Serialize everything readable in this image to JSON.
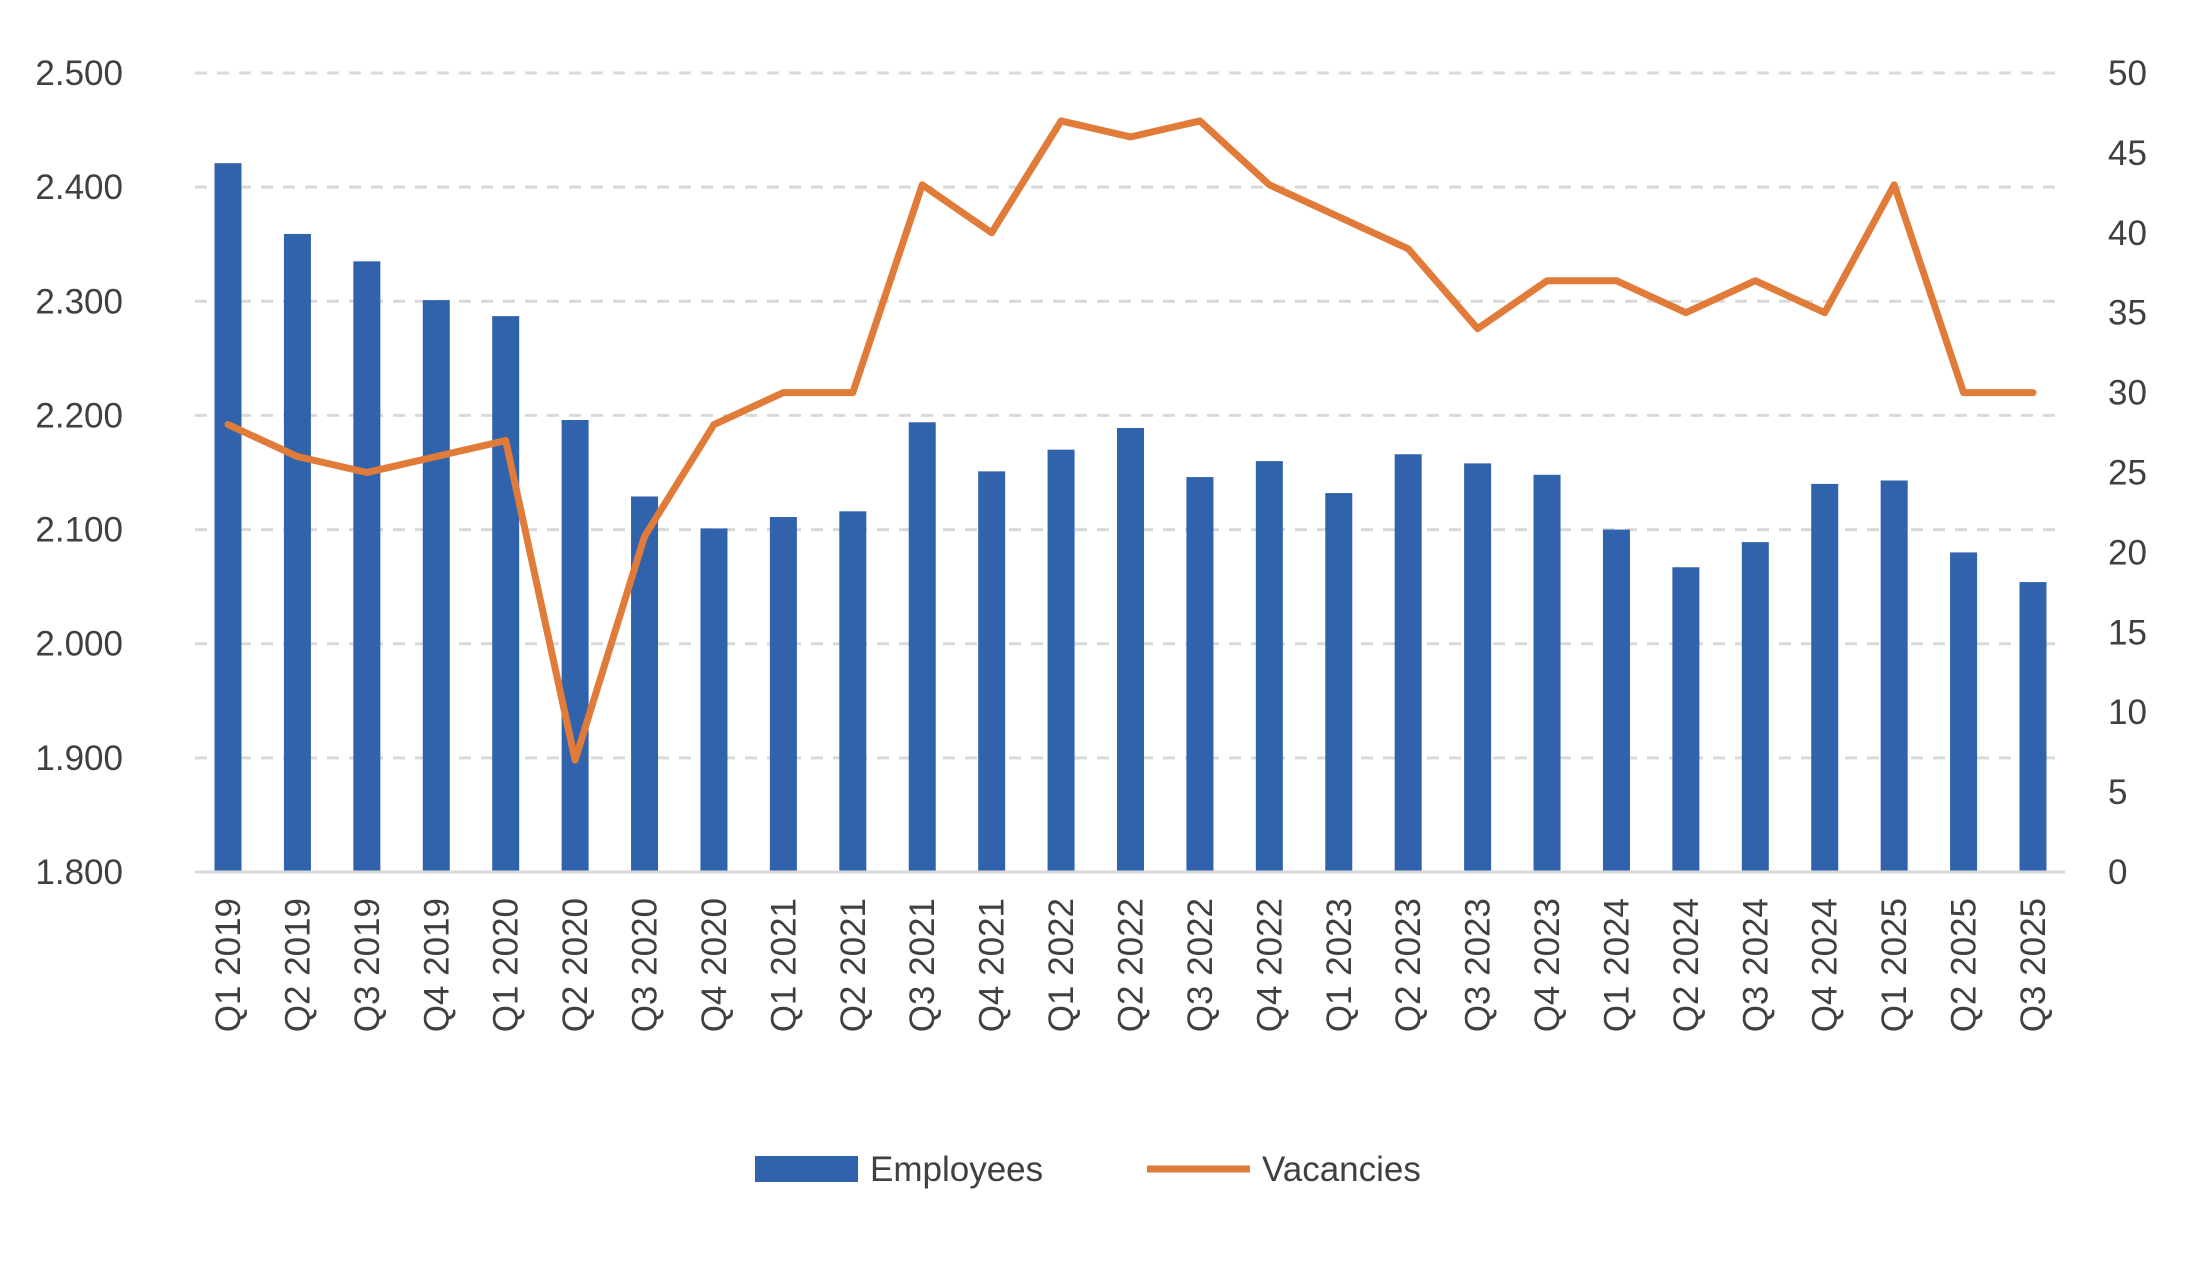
{
  "chart_data": {
    "type": "bar",
    "categories": [
      "Q1 2019",
      "Q2 2019",
      "Q3 2019",
      "Q4 2019",
      "Q1 2020",
      "Q2 2020",
      "Q3 2020",
      "Q4 2020",
      "Q1 2021",
      "Q2 2021",
      "Q3 2021",
      "Q4 2021",
      "Q1 2022",
      "Q2 2022",
      "Q3 2022",
      "Q4 2022",
      "Q1 2023",
      "Q2 2023",
      "Q3 2023",
      "Q4 2023",
      "Q1 2024",
      "Q2 2024",
      "Q3 2024",
      "Q4 2024",
      "Q1 2025",
      "Q2 2025",
      "Q3 2025"
    ],
    "series": [
      {
        "name": "Employees",
        "type": "bar",
        "axis": "left",
        "color": "#3163ad",
        "values": [
          2421,
          2359,
          2335,
          2301,
          2287,
          2196,
          2129,
          2101,
          2111,
          2116,
          2194,
          2151,
          2170,
          2189,
          2146,
          2160,
          2132,
          2166,
          2158,
          2148,
          2100,
          2067,
          2089,
          2140,
          2143,
          2080,
          2054
        ]
      },
      {
        "name": "Vacancies",
        "type": "line",
        "axis": "right",
        "color": "#e07b39",
        "values": [
          28,
          26,
          25,
          26,
          27,
          7,
          21,
          28,
          30,
          30,
          43,
          40,
          47,
          46,
          47,
          43,
          41,
          39,
          34,
          37,
          37,
          35,
          37,
          35,
          43,
          30,
          30
        ]
      }
    ],
    "left_axis": {
      "min": 1800,
      "max": 2500,
      "tick_labels": [
        "1.800",
        "1.900",
        "2.000",
        "2.100",
        "2.200",
        "2.300",
        "2.400",
        "2.500"
      ]
    },
    "right_axis": {
      "min": 0,
      "max": 50,
      "tick_labels": [
        "0",
        "5",
        "10",
        "15",
        "20",
        "25",
        "30",
        "35",
        "40",
        "45",
        "50"
      ]
    },
    "grid": true,
    "legend_position": "bottom",
    "title": "",
    "xlabel": "",
    "ylabel": ""
  },
  "legend": {
    "employees_label": "Employees",
    "vacancies_label": "Vacancies"
  },
  "colors": {
    "bar": "#3163ad",
    "line": "#e07b39",
    "grid": "#d9d9d9",
    "text": "#404040"
  }
}
